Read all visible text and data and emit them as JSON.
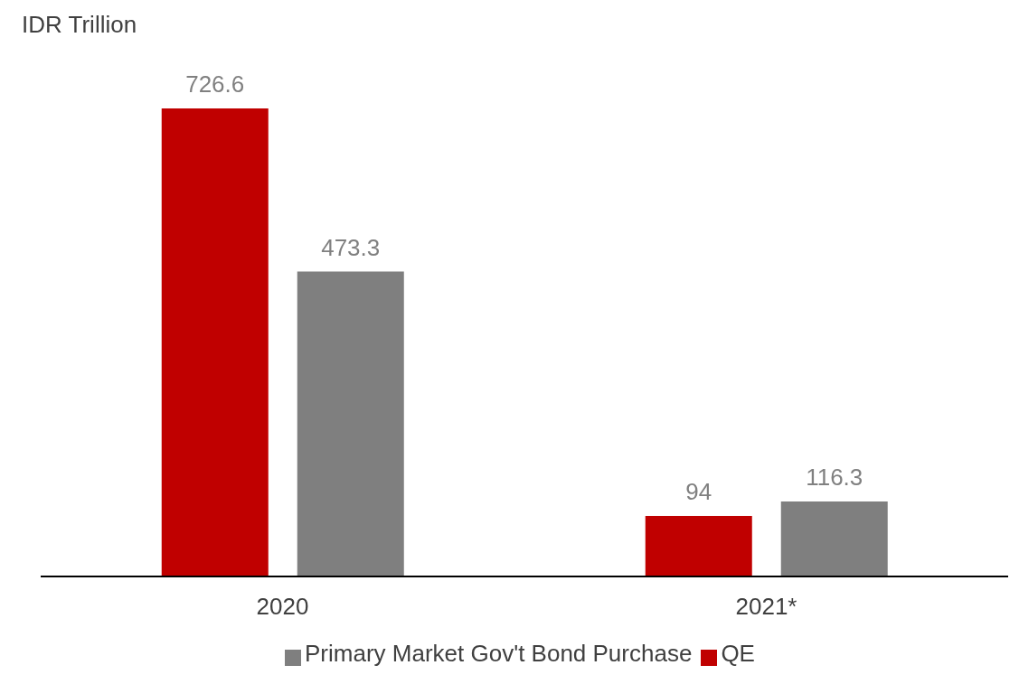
{
  "chart_data": {
    "type": "bar",
    "ylabel": "IDR Trillion",
    "categories": [
      "2020",
      "2021*"
    ],
    "series": [
      {
        "name": "QE",
        "color": "#c00000",
        "values": [
          726.6,
          94
        ]
      },
      {
        "name": "Primary Market Gov't Bond Purchase",
        "color": "#7f7f7f",
        "values": [
          473.3,
          116.3
        ]
      }
    ],
    "data_labels": true,
    "legend": "bottom",
    "grid": false
  }
}
